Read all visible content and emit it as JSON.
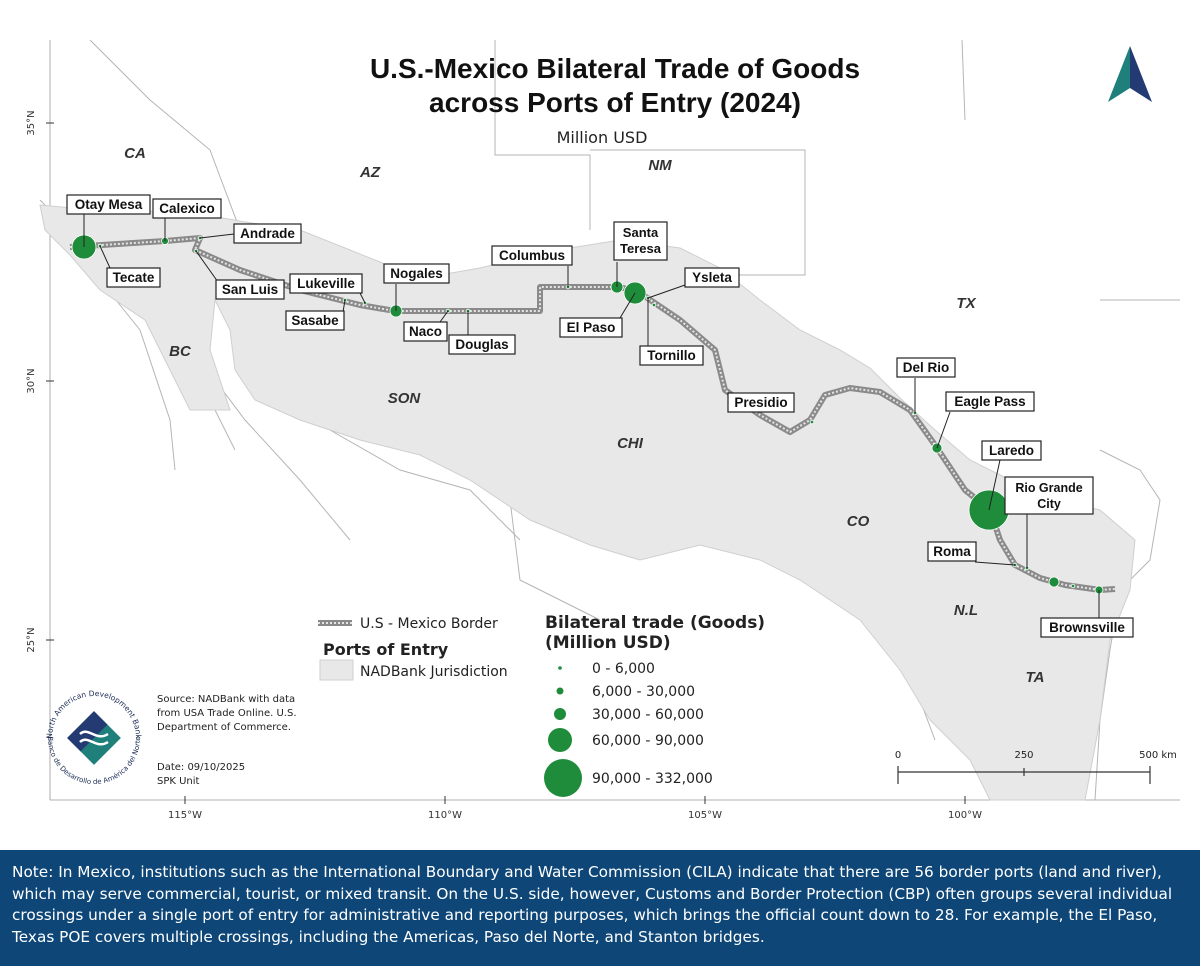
{
  "map": {
    "title_line1": "U.S.-Mexico Bilateral Trade of Goods",
    "title_line2": "across Ports of Entry (2024)",
    "subtitle": "Million USD",
    "north_arrow_icon": "north-arrow-icon",
    "colors": {
      "port_circle": "#1e8c3a",
      "jurisdiction_fill": "#e8e8e8",
      "border_line": "#8a8a8a",
      "north_arrow_teal": "#1f7f7a",
      "north_arrow_navy": "#243a73",
      "note_background": "#0d4677"
    },
    "lat_labels": [
      "35°N",
      "30°N",
      "25°N"
    ],
    "lon_labels": [
      "115°W",
      "110°W",
      "105°W",
      "100°W"
    ],
    "states": [
      "CA",
      "AZ",
      "NM",
      "TX",
      "BC",
      "SON",
      "CHI",
      "CO",
      "N.L",
      "TA"
    ],
    "ports": [
      {
        "name": "Otay Mesa",
        "trade_class": "90,000 - 332,000"
      },
      {
        "name": "Calexico",
        "trade_class": "6,000 - 30,000"
      },
      {
        "name": "Andrade",
        "trade_class": "0 - 6,000"
      },
      {
        "name": "Tecate",
        "trade_class": "0 - 6,000"
      },
      {
        "name": "San Luis",
        "trade_class": "0 - 6,000"
      },
      {
        "name": "Lukeville",
        "trade_class": "0 - 6,000"
      },
      {
        "name": "Sasabe",
        "trade_class": "0 - 6,000"
      },
      {
        "name": "Nogales",
        "trade_class": "30,000 - 60,000"
      },
      {
        "name": "Naco",
        "trade_class": "0 - 6,000"
      },
      {
        "name": "Douglas",
        "trade_class": "0 - 6,000"
      },
      {
        "name": "Columbus",
        "trade_class": "0 - 6,000"
      },
      {
        "name": "Santa Teresa",
        "trade_class": "30,000 - 60,000"
      },
      {
        "name": "El Paso",
        "trade_class": "60,000 - 90,000"
      },
      {
        "name": "Ysleta",
        "trade_class": "0 - 6,000"
      },
      {
        "name": "Tornillo",
        "trade_class": "0 - 6,000"
      },
      {
        "name": "Presidio",
        "trade_class": "0 - 6,000"
      },
      {
        "name": "Del Rio",
        "trade_class": "0 - 6,000"
      },
      {
        "name": "Eagle Pass",
        "trade_class": "6,000 - 30,000"
      },
      {
        "name": "Laredo",
        "trade_class": "90,000 - 332,000"
      },
      {
        "name": "Rio Grande City",
        "trade_class": "0 - 6,000"
      },
      {
        "name": "Roma",
        "trade_class": "0 - 6,000"
      },
      {
        "name": "Brownsville",
        "trade_class": "6,000 - 30,000"
      }
    ],
    "extra_port_classes": [
      "6,000 - 30,000",
      "0 - 6,000"
    ],
    "legend": {
      "border_label": "U.S - Mexico Border",
      "ports_heading": "Ports of Entry",
      "jurisdiction_label": "NADBank Jurisdiction",
      "size_heading_line1": "Bilateral trade (Goods)",
      "size_heading_line2": "(Million USD)",
      "size_classes": [
        "0 - 6,000",
        "6,000 - 30,000",
        "30,000 - 60,000",
        "60,000 - 90,000",
        "90,000 - 332,000"
      ]
    },
    "scale_bar": {
      "labels": [
        "0",
        "250",
        "500 km"
      ]
    },
    "source": {
      "line1": "Source: NADBank with data",
      "line2": "from USA Trade Online. U.S.",
      "line3": "Department of Commerce.",
      "date": "Date: 09/10/2025",
      "unit": "SPK Unit"
    },
    "logo": {
      "text_top": "North American Development Bank",
      "text_bottom": "Banco de Desarrollo de América del Norte",
      "icon": "nadbank-logo-icon"
    }
  },
  "note": {
    "text": "Note: In Mexico, institutions such as the International Boundary and Water Commission (CILA) indicate that there are 56 border ports (land and river), which may serve commercial, tourist, or mixed transit. On the U.S. side, however, Customs and Border Protection (CBP) often groups several individual crossings under a single port of entry for administrative and reporting purposes, which brings the official count down to 28. For example, the El Paso, Texas POE covers multiple crossings, including the Americas, Paso del Norte, and Stanton bridges."
  }
}
